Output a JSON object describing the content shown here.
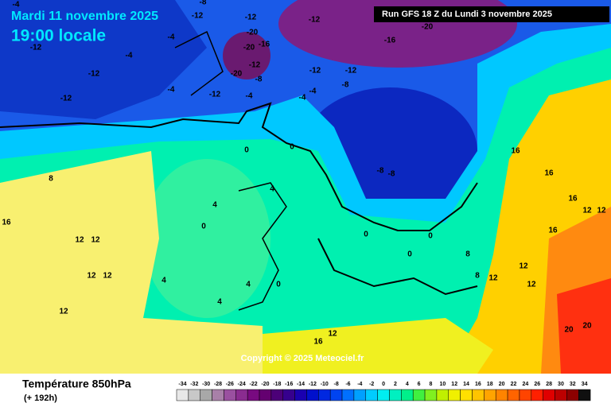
{
  "header": {
    "date": "Mardi 11 novembre 2025",
    "time": "19:00 locale",
    "run": "Run GFS 18 Z du Lundi 3 novembre 2025"
  },
  "copyright": "Copyright © 2025 Meteociel.fr",
  "footer": {
    "title": "Température 850hPa",
    "lead": "(+ 192h)"
  },
  "map_labels": [
    -4,
    -12,
    -12,
    -4,
    -12,
    -8,
    -12,
    -20,
    -16,
    -20,
    -12,
    -4,
    -12,
    -12,
    -4,
    -20,
    -8,
    -12,
    -4,
    -4,
    -8,
    -12,
    -16,
    -20,
    -12,
    -8,
    -8,
    -4,
    0,
    0,
    4,
    4,
    0,
    8,
    16,
    12,
    12,
    12,
    12,
    12,
    4,
    4,
    0,
    4,
    0,
    0,
    0,
    12,
    8,
    16,
    16,
    12,
    16,
    12,
    16,
    20,
    20,
    12,
    12,
    8,
    16,
    12
  ],
  "legend": {
    "values": [
      -34,
      -32,
      -30,
      -28,
      -26,
      -24,
      -22,
      -20,
      -18,
      -16,
      -14,
      -12,
      -10,
      -8,
      -6,
      -4,
      -2,
      0,
      2,
      4,
      6,
      8,
      10,
      12,
      14,
      16,
      18,
      20,
      22,
      24,
      26,
      28,
      30,
      32,
      34
    ],
    "colors": [
      "#e8e8e8",
      "#c8c8c8",
      "#a8a8a8",
      "#a880a8",
      "#9a50a0",
      "#8a2c90",
      "#780a80",
      "#640070",
      "#4c0078",
      "#36008e",
      "#1a00b0",
      "#0010cc",
      "#0028e0",
      "#0044f0",
      "#0070ff",
      "#00a0ff",
      "#00ccff",
      "#00eef0",
      "#00f0c0",
      "#00f08a",
      "#40f040",
      "#80f020",
      "#c0f000",
      "#f0f000",
      "#ffe000",
      "#ffc400",
      "#ffa400",
      "#ff8400",
      "#ff6400",
      "#ff4400",
      "#ff2000",
      "#e00000",
      "#bc0000",
      "#8c0000",
      "#101010"
    ]
  }
}
